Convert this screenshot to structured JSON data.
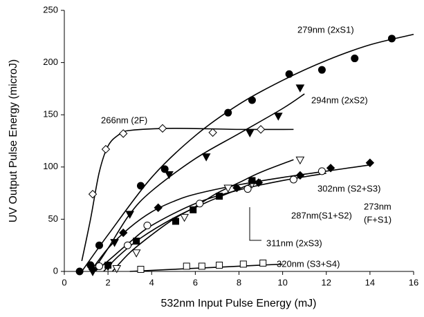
{
  "chart_data": {
    "type": "scatter",
    "xlabel": "532nm Input Pulse Energy (mJ)",
    "ylabel": "UV Output Pulse Energy (microJ)",
    "xlim": [
      0,
      16
    ],
    "xticks": [
      0,
      2,
      4,
      6,
      8,
      10,
      12,
      14,
      16
    ],
    "ylim": [
      0,
      250
    ],
    "yticks": [
      0,
      50,
      100,
      150,
      200,
      250
    ],
    "color": "#000000",
    "series": [
      {
        "label": [
          "279nm (2xS1)"
        ],
        "marker": "circle",
        "filled": true,
        "x": [
          0.7,
          1.2,
          1.6,
          3.5,
          4.6,
          7.5,
          8.6,
          10.3,
          11.8,
          13.3,
          15
        ],
        "values": [
          0,
          6,
          25,
          82,
          98,
          152,
          164,
          189,
          193,
          204,
          223
        ],
        "fit_x": [
          0.8,
          2,
          4,
          6,
          8,
          10,
          12,
          14,
          16
        ],
        "fit_y": [
          0,
          35,
          90,
          130,
          160,
          183,
          202,
          217,
          227
        ]
      },
      {
        "label": [
          "294nm (2xS2)"
        ],
        "marker": "tri",
        "filled": true,
        "x": [
          1.3,
          2,
          2.3,
          3,
          4.8,
          6.5,
          8.5,
          9.8,
          10.8
        ],
        "values": [
          0,
          5,
          28,
          55,
          93,
          110,
          133,
          149,
          176
        ],
        "fit_x": [
          1.3,
          2,
          3,
          4,
          6,
          8,
          10,
          11
        ],
        "fit_y": [
          0,
          22,
          55,
          77,
          108,
          132,
          156,
          170
        ]
      },
      {
        "label": [
          "266nm (2F)"
        ],
        "marker": "diamond",
        "filled": false,
        "x": [
          1.3,
          1.9,
          2.7,
          4.5,
          6.8,
          9
        ],
        "values": [
          74,
          117,
          132,
          137,
          133,
          136
        ],
        "fit_x": [
          0.8,
          1.2,
          1.6,
          2,
          2.5,
          3,
          5,
          8,
          10.5
        ],
        "fit_y": [
          10,
          50,
          95,
          120,
          131,
          135,
          137,
          136,
          136
        ]
      },
      {
        "label": [
          "302nm (S2+S3)"
        ],
        "marker": "tri",
        "filled": false,
        "x": [
          2.4,
          3.3,
          5.5,
          7.5,
          8.6,
          10.8
        ],
        "values": [
          3,
          18,
          52,
          80,
          84,
          107
        ],
        "fit_x": [
          2.2,
          3,
          4,
          5,
          6,
          7,
          8,
          9,
          10.5
        ],
        "fit_y": [
          0,
          18,
          35,
          50,
          62,
          75,
          85,
          95,
          107
        ]
      },
      {
        "label": [
          "273nm",
          "(F+S1)"
        ],
        "marker": "diamond",
        "filled": true,
        "x": [
          1.3,
          2.7,
          4.3,
          7.9,
          8.9,
          10.8,
          12.2,
          14
        ],
        "values": [
          2,
          37,
          61,
          80,
          85,
          92,
          99,
          104
        ],
        "fit_x": [
          1.2,
          2,
          3,
          4,
          5,
          6,
          8,
          10,
          12,
          14
        ],
        "fit_y": [
          0,
          22,
          42,
          57,
          67,
          74,
          83,
          90,
          96,
          102
        ]
      },
      {
        "label": [
          "287nm(S1+S2)"
        ],
        "marker": "circle",
        "filled": false,
        "x": [
          1.6,
          2.9,
          3.8,
          6.2,
          8.4,
          10.5,
          11.8
        ],
        "values": [
          5,
          25,
          44,
          65,
          79,
          88,
          96
        ],
        "fit_x": [
          1.4,
          2,
          3,
          4,
          6,
          8,
          10,
          12
        ],
        "fit_y": [
          0,
          10,
          28,
          44,
          65,
          78,
          87,
          94
        ]
      },
      {
        "label": [
          "311nm (2xS3)"
        ],
        "marker": "square",
        "filled": true,
        "x": [
          2,
          3.3,
          5.1,
          5.9,
          7.1,
          8.6
        ],
        "values": [
          6,
          29,
          48,
          59,
          72,
          87
        ],
        "fit_x": [
          1.8,
          2.5,
          3.5,
          5,
          6.5,
          8,
          9
        ],
        "fit_y": [
          0,
          15,
          32,
          51,
          66,
          79,
          88
        ]
      },
      {
        "label": [
          "320nm (S3+S4)"
        ],
        "marker": "square",
        "filled": false,
        "x": [
          3.5,
          5.6,
          6.3,
          7.1,
          8.2,
          9.1
        ],
        "values": [
          2,
          5,
          5,
          6,
          7,
          8
        ],
        "fit_x": [
          3,
          6,
          8,
          10
        ],
        "fit_y": [
          0,
          3,
          5,
          7
        ]
      }
    ]
  }
}
